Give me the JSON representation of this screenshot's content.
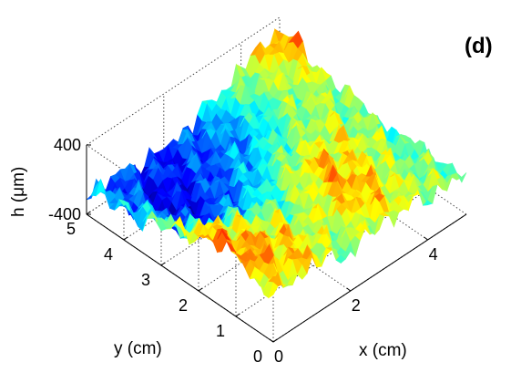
{
  "chart_data": {
    "type": "surface",
    "panel_label": "(d)",
    "xlabel": "x (cm)",
    "ylabel": "y (cm)",
    "zlabel": "h (μm)",
    "xlim": [
      0,
      5
    ],
    "ylim": [
      0,
      5
    ],
    "zlim": [
      -400,
      400
    ],
    "x_ticks": [
      0,
      2,
      4
    ],
    "y_ticks": [
      0,
      1,
      2,
      3,
      4,
      5
    ],
    "z_ticks": [
      -400,
      400
    ],
    "x_tick_labels": [
      "0",
      "2",
      "4"
    ],
    "y_tick_labels": [
      "0",
      "1",
      "2",
      "3",
      "4",
      "5"
    ],
    "z_tick_labels": [
      "-400",
      "400"
    ],
    "grid": true,
    "colormap": "jet",
    "colormap_stops": [
      "#00008f",
      "#0000ff",
      "#0080ff",
      "#00ffff",
      "#80ff80",
      "#ffff00",
      "#ff8000",
      "#ff0000",
      "#800000"
    ],
    "surface_rows_y": [
      5,
      4,
      3,
      2,
      1,
      0
    ],
    "surface_cols_x": [
      0,
      1,
      2,
      3,
      4,
      5
    ],
    "surface_heights": [
      [
        -150,
        -200,
        -250,
        -100,
        100,
        300
      ],
      [
        -50,
        -300,
        -200,
        -150,
        50,
        150
      ],
      [
        50,
        -250,
        -150,
        0,
        100,
        50
      ],
      [
        250,
        100,
        0,
        200,
        150,
        0
      ],
      [
        300,
        200,
        100,
        250,
        100,
        0
      ],
      [
        100,
        200,
        50,
        150,
        100,
        50
      ]
    ]
  }
}
